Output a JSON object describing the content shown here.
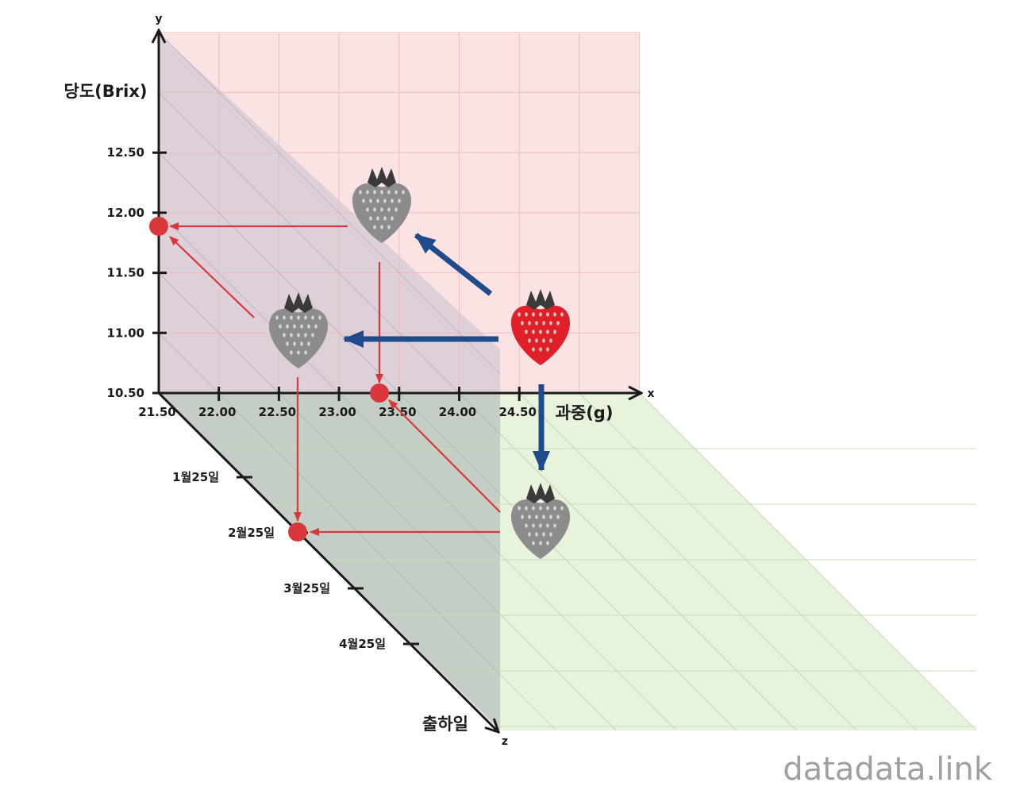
{
  "watermark": "datadata.link",
  "axes": {
    "x": {
      "letter": "x",
      "title": "과중(g)",
      "ticks": [
        "21.50",
        "22.00",
        "22.50",
        "23.00",
        "23.50",
        "24.00",
        "24.50"
      ]
    },
    "y": {
      "letter": "y",
      "title": "당도(Brix)",
      "ticks": [
        "10.50",
        "11.00",
        "11.50",
        "12.00",
        "12.50"
      ]
    },
    "z": {
      "letter": "z",
      "title": "출하일",
      "ticks": [
        "1월25일",
        "2월25일",
        "3월25일",
        "4월25일"
      ]
    }
  },
  "colors": {
    "xy_plane": "#fbe3e3",
    "yz_plane": "#cbc3d2",
    "xz_plane": "#e8f3dc",
    "zx_plane_shaded": "#b7c8b4",
    "red_arrow": "#d8383c",
    "blue_arrow": "#1f4a8c",
    "point": "#d8383c",
    "axis": "#1a1a1a"
  },
  "icons": {
    "original": "red-strawberry-icon",
    "projection": "gray-strawberry-icon"
  }
}
